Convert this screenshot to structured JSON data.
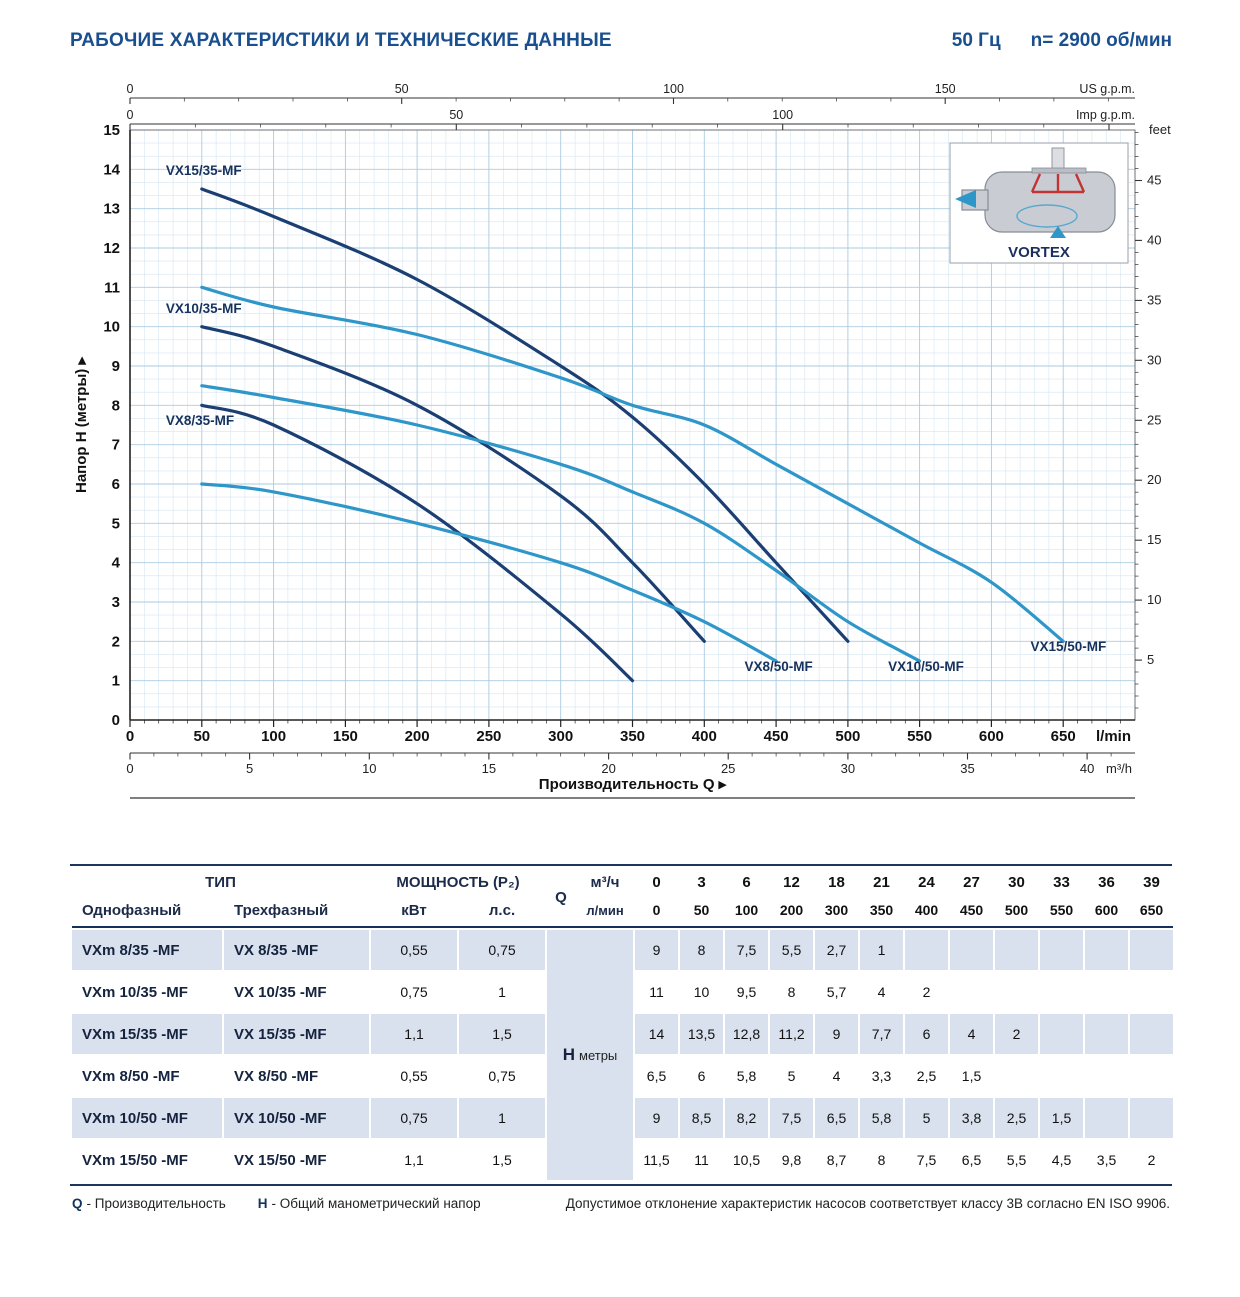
{
  "header": {
    "title": "РАБОЧИЕ ХАРАКТЕРИСТИКИ И ТЕХНИЧЕСКИЕ ДАННЫЕ",
    "frequency": "50 Гц",
    "speed": "n= 2900 об/мин"
  },
  "chart_data": {
    "type": "line",
    "xlabel": "Производительность Q",
    "ylabel": "Напор H (метры)",
    "xlim_lmin": [
      0,
      700
    ],
    "ylim_m": [
      0,
      15
    ],
    "grid": "on",
    "axes": {
      "top_us": {
        "label": "US g.p.m.",
        "ticks": [
          0,
          50,
          100,
          150
        ],
        "lmin_per_unit": 3.7854
      },
      "top_imp": {
        "label": "Imp g.p.m.",
        "ticks": [
          0,
          50,
          100
        ],
        "lmin_per_unit": 4.5461
      },
      "bottom_lmin": {
        "label": "l/min",
        "ticks": [
          0,
          50,
          100,
          150,
          200,
          250,
          300,
          350,
          400,
          450,
          500,
          550,
          600,
          650
        ]
      },
      "bottom_m3h": {
        "label": "m³/h",
        "ticks": [
          0,
          5,
          10,
          15,
          20,
          25,
          30,
          35,
          40
        ],
        "lmin_per_unit": 16.6667
      },
      "left_m": {
        "ticks": [
          0,
          1,
          2,
          3,
          4,
          5,
          6,
          7,
          8,
          9,
          10,
          11,
          12,
          13,
          14,
          15
        ]
      },
      "right_feet": {
        "label": "feet",
        "ticks": [
          5,
          10,
          15,
          20,
          25,
          30,
          35,
          40,
          45
        ],
        "m_per_unit": 0.3048
      }
    },
    "series": [
      {
        "name": "VX15/35-MF",
        "color": "#1b3f72",
        "label_at": [
          25,
          13.85
        ],
        "anchor": "start",
        "points": [
          [
            50,
            13.5
          ],
          [
            100,
            12.8
          ],
          [
            200,
            11.2
          ],
          [
            300,
            9
          ],
          [
            350,
            7.7
          ],
          [
            400,
            6
          ],
          [
            450,
            4
          ],
          [
            500,
            2
          ]
        ]
      },
      {
        "name": "VX10/35-MF",
        "color": "#1b3f72",
        "label_at": [
          25,
          10.35
        ],
        "anchor": "start",
        "points": [
          [
            50,
            10
          ],
          [
            100,
            9.5
          ],
          [
            200,
            8
          ],
          [
            300,
            5.7
          ],
          [
            350,
            4
          ],
          [
            400,
            2
          ]
        ]
      },
      {
        "name": "VX8/35-MF",
        "color": "#1b3f72",
        "label_at": [
          25,
          7.5
        ],
        "anchor": "start",
        "points": [
          [
            50,
            8
          ],
          [
            100,
            7.5
          ],
          [
            200,
            5.5
          ],
          [
            300,
            2.7
          ],
          [
            350,
            1
          ]
        ]
      },
      {
        "name": "VX8/50-MF",
        "color": "#2e96c9",
        "label_at": [
          428,
          1.25
        ],
        "anchor": "start",
        "points": [
          [
            50,
            6
          ],
          [
            100,
            5.8
          ],
          [
            200,
            5
          ],
          [
            300,
            4
          ],
          [
            350,
            3.3
          ],
          [
            400,
            2.5
          ],
          [
            450,
            1.5
          ]
        ]
      },
      {
        "name": "VX10/50-MF",
        "color": "#2e96c9",
        "label_at": [
          528,
          1.25
        ],
        "anchor": "start",
        "points": [
          [
            50,
            8.5
          ],
          [
            100,
            8.2
          ],
          [
            200,
            7.5
          ],
          [
            300,
            6.5
          ],
          [
            350,
            5.8
          ],
          [
            400,
            5
          ],
          [
            450,
            3.8
          ],
          [
            500,
            2.5
          ],
          [
            550,
            1.5
          ]
        ]
      },
      {
        "name": "VX15/50-MF",
        "color": "#2e96c9",
        "label_at": [
          680,
          1.75
        ],
        "anchor": "end",
        "points": [
          [
            50,
            11
          ],
          [
            100,
            10.5
          ],
          [
            200,
            9.8
          ],
          [
            300,
            8.7
          ],
          [
            350,
            8
          ],
          [
            400,
            7.5
          ],
          [
            450,
            6.5
          ],
          [
            500,
            5.5
          ],
          [
            550,
            4.5
          ],
          [
            600,
            3.5
          ],
          [
            650,
            2
          ]
        ]
      }
    ],
    "inset": {
      "label": "VORTEX"
    }
  },
  "table": {
    "header": {
      "type_label": "ТИП",
      "single_phase": "Однофазный",
      "three_phase": "Трехфазный",
      "power_label": "МОЩНОСТЬ (P₂)",
      "kw": "кВт",
      "hp": "л.с.",
      "q_label": "Q",
      "m3h_label": "м³/ч",
      "lmin_label": "л/мин",
      "m3h_values": [
        "0",
        "3",
        "6",
        "12",
        "18",
        "21",
        "24",
        "27",
        "30",
        "33",
        "36",
        "39"
      ],
      "lmin_values": [
        "0",
        "50",
        "100",
        "200",
        "300",
        "350",
        "400",
        "450",
        "500",
        "550",
        "600",
        "650"
      ],
      "h_label": "H",
      "h_unit": "метры"
    },
    "rows": [
      {
        "single": "VXm 8/35  -MF",
        "three": "VX 8/35  -MF",
        "kw": "0,55",
        "hp": "0,75",
        "values": [
          "9",
          "8",
          "7,5",
          "5,5",
          "2,7",
          "1",
          "",
          "",
          "",
          "",
          "",
          ""
        ]
      },
      {
        "single": "VXm 10/35 -MF",
        "three": "VX 10/35 -MF",
        "kw": "0,75",
        "hp": "1",
        "values": [
          "11",
          "10",
          "9,5",
          "8",
          "5,7",
          "4",
          "2",
          "",
          "",
          "",
          "",
          ""
        ]
      },
      {
        "single": "VXm 15/35 -MF",
        "three": "VX 15/35 -MF",
        "kw": "1,1",
        "hp": "1,5",
        "values": [
          "14",
          "13,5",
          "12,8",
          "11,2",
          "9",
          "7,7",
          "6",
          "4",
          "2",
          "",
          "",
          ""
        ]
      },
      {
        "single": "VXm 8/50  -MF",
        "three": "VX 8/50  -MF",
        "kw": "0,55",
        "hp": "0,75",
        "values": [
          "6,5",
          "6",
          "5,8",
          "5",
          "4",
          "3,3",
          "2,5",
          "1,5",
          "",
          "",
          "",
          ""
        ]
      },
      {
        "single": "VXm 10/50 -MF",
        "three": "VX 10/50 -MF",
        "kw": "0,75",
        "hp": "1",
        "values": [
          "9",
          "8,5",
          "8,2",
          "7,5",
          "6,5",
          "5,8",
          "5",
          "3,8",
          "2,5",
          "1,5",
          "",
          ""
        ]
      },
      {
        "single": "VXm 15/50 -MF",
        "three": "VX 15/50 -MF",
        "kw": "1,1",
        "hp": "1,5",
        "values": [
          "11,5",
          "11",
          "10,5",
          "9,8",
          "8,7",
          "8",
          "7,5",
          "6,5",
          "5,5",
          "4,5",
          "3,5",
          "2"
        ]
      }
    ]
  },
  "footer": {
    "q_term": "Q",
    "q_def": "- Производительность",
    "h_term": "H",
    "h_def": "- Общий манометрический напор",
    "tolerance": "Допустимое отклонение характеристик насосов соответствует классу 3B согласно EN ISO 9906."
  }
}
